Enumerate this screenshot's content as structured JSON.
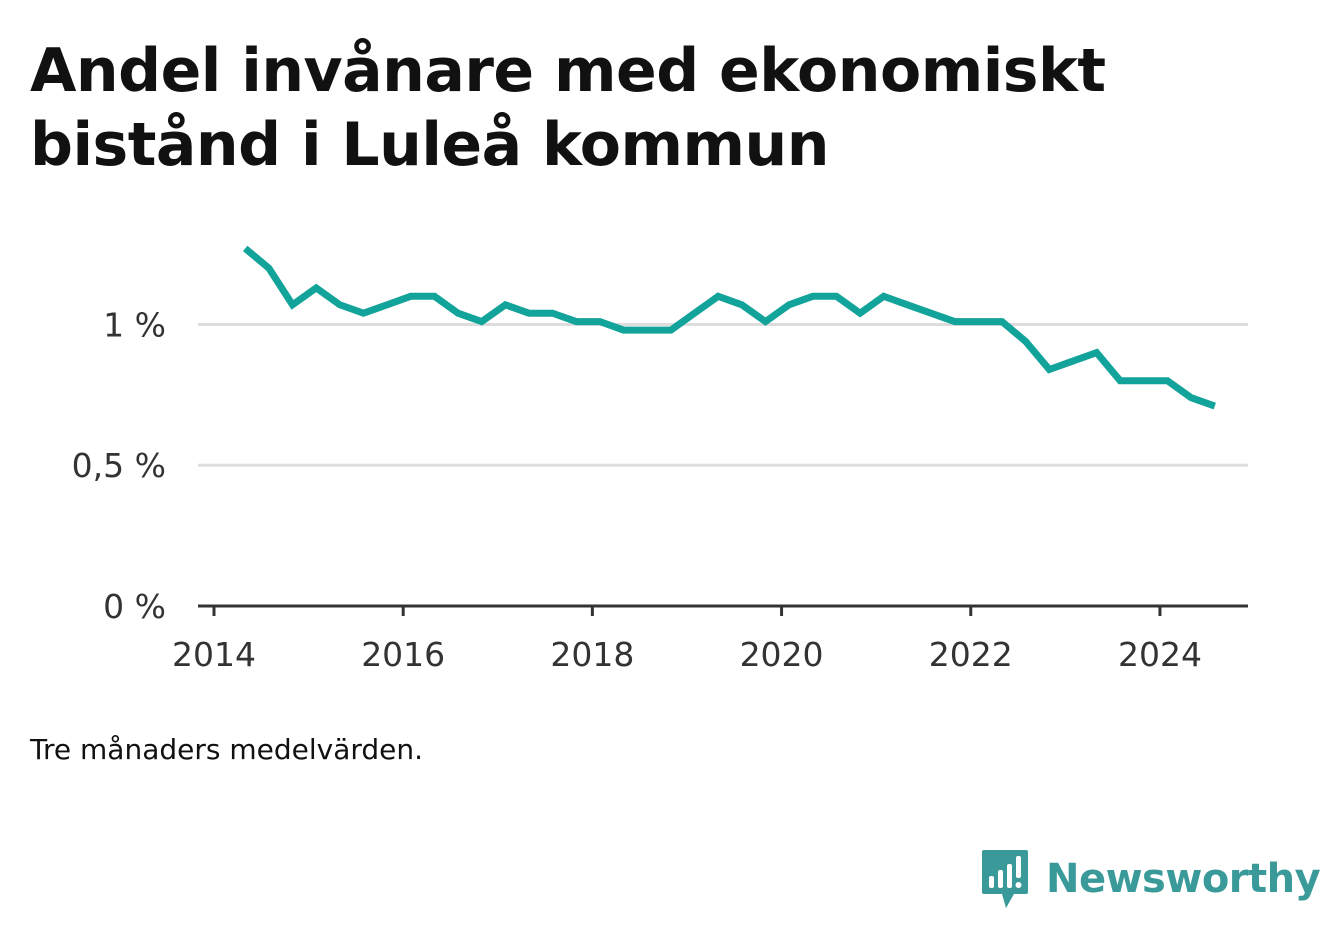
{
  "title": "Andel invånare med ekonomiskt bistånd i Luleå kommun",
  "footnote": "Tre månaders medelvärden.",
  "brand": {
    "name": "Newsworthy",
    "icon": "bar-chart-speech-bubble-icon",
    "color": "#3a9a9a"
  },
  "colors": {
    "line": "#12a39a",
    "grid": "#dddddd",
    "axis": "#333333"
  },
  "chart_data": {
    "type": "line",
    "title": "Andel invånare med ekonomiskt bistånd i Luleå kommun",
    "xlabel": "",
    "ylabel": "",
    "xlim": [
      2014,
      2025.1
    ],
    "ylim": [
      0,
      1.3
    ],
    "x_ticks": [
      2014,
      2016,
      2018,
      2020,
      2022,
      2024
    ],
    "x_tick_labels": [
      "2014",
      "2016",
      "2018",
      "2020",
      "2022",
      "2024"
    ],
    "y_ticks": [
      0,
      0.5,
      1
    ],
    "y_tick_labels": [
      "0 %",
      "0,5 %",
      "1 %"
    ],
    "grid": true,
    "legend": "none",
    "series": [
      {
        "x": [
          2014.33,
          2014.58,
          2014.83,
          2015.08,
          2015.33,
          2015.58,
          2015.83,
          2016.08,
          2016.33,
          2016.58,
          2016.83,
          2017.08,
          2017.33,
          2017.58,
          2017.83,
          2018.08,
          2018.33,
          2018.58,
          2018.83,
          2019.08,
          2019.33,
          2019.58,
          2019.83,
          2020.08,
          2020.33,
          2020.58,
          2020.83,
          2021.08,
          2021.33,
          2021.58,
          2021.83,
          2022.08,
          2022.33,
          2022.58,
          2022.83,
          2023.08,
          2023.33,
          2023.58,
          2023.83,
          2024.08,
          2024.33,
          2024.58
        ],
        "y": [
          1.27,
          1.2,
          1.07,
          1.13,
          1.07,
          1.04,
          1.07,
          1.1,
          1.1,
          1.04,
          1.01,
          1.07,
          1.04,
          1.04,
          1.01,
          1.01,
          0.98,
          0.98,
          0.98,
          1.04,
          1.1,
          1.07,
          1.01,
          1.07,
          1.1,
          1.1,
          1.04,
          1.1,
          1.07,
          1.04,
          1.01,
          1.01,
          1.01,
          0.94,
          0.84,
          0.87,
          0.9,
          0.8,
          0.8,
          0.8,
          0.74,
          0.71
        ]
      }
    ]
  }
}
